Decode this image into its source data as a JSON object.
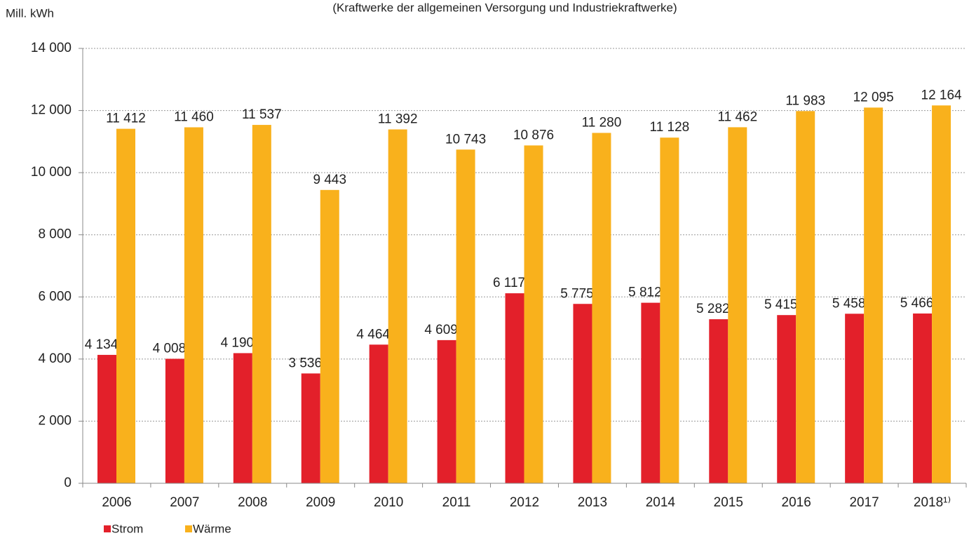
{
  "chart_data": {
    "type": "bar",
    "subtitle": "(Kraftwerke der allgemeinen Versorgung und Industriekraftwerke)",
    "y_axis_label": "Mill. kWh",
    "categories": [
      "2006",
      "2007",
      "2008",
      "2009",
      "2010",
      "2011",
      "2012",
      "2013",
      "2014",
      "2015",
      "2016",
      "2017",
      "2018¹⁾"
    ],
    "series": [
      {
        "name": "Strom",
        "color": "#e3202a",
        "values": [
          4134,
          4008,
          4190,
          3536,
          4464,
          4609,
          6117,
          5775,
          5812,
          5282,
          5415,
          5458,
          5466
        ],
        "value_labels": [
          "4 134",
          "4 008",
          "4 190",
          "3 536",
          "4 464",
          "4 609",
          "6 117",
          "5 775",
          "5 812",
          "5 282",
          "5 415",
          "5 458",
          "5 466"
        ]
      },
      {
        "name": "Wärme",
        "color": "#f9b11c",
        "values": [
          11412,
          11460,
          11537,
          9443,
          11392,
          10743,
          10876,
          11280,
          11128,
          11462,
          11983,
          12095,
          12164
        ],
        "value_labels": [
          "11 412",
          "11 460",
          "11 537",
          "9 443",
          "11 392",
          "10 743",
          "10 876",
          "11 280",
          "11 128",
          "11 462",
          "11 983",
          "12 095",
          "12 164"
        ]
      }
    ],
    "ylim": [
      0,
      14000
    ],
    "yticks": [
      0,
      {
        "value": 2000,
        "label": "2 000"
      },
      {
        "value": 4000,
        "label": "4 000"
      },
      {
        "value": 6000,
        "label": "6 000"
      },
      {
        "value": 8000,
        "label": "8 000"
      },
      {
        "value": 10000,
        "label": "10 000"
      },
      {
        "value": 12000,
        "label": "12 000"
      },
      {
        "value": 14000,
        "label": "14 000"
      }
    ],
    "grid": true,
    "legend": "bottom-left"
  }
}
